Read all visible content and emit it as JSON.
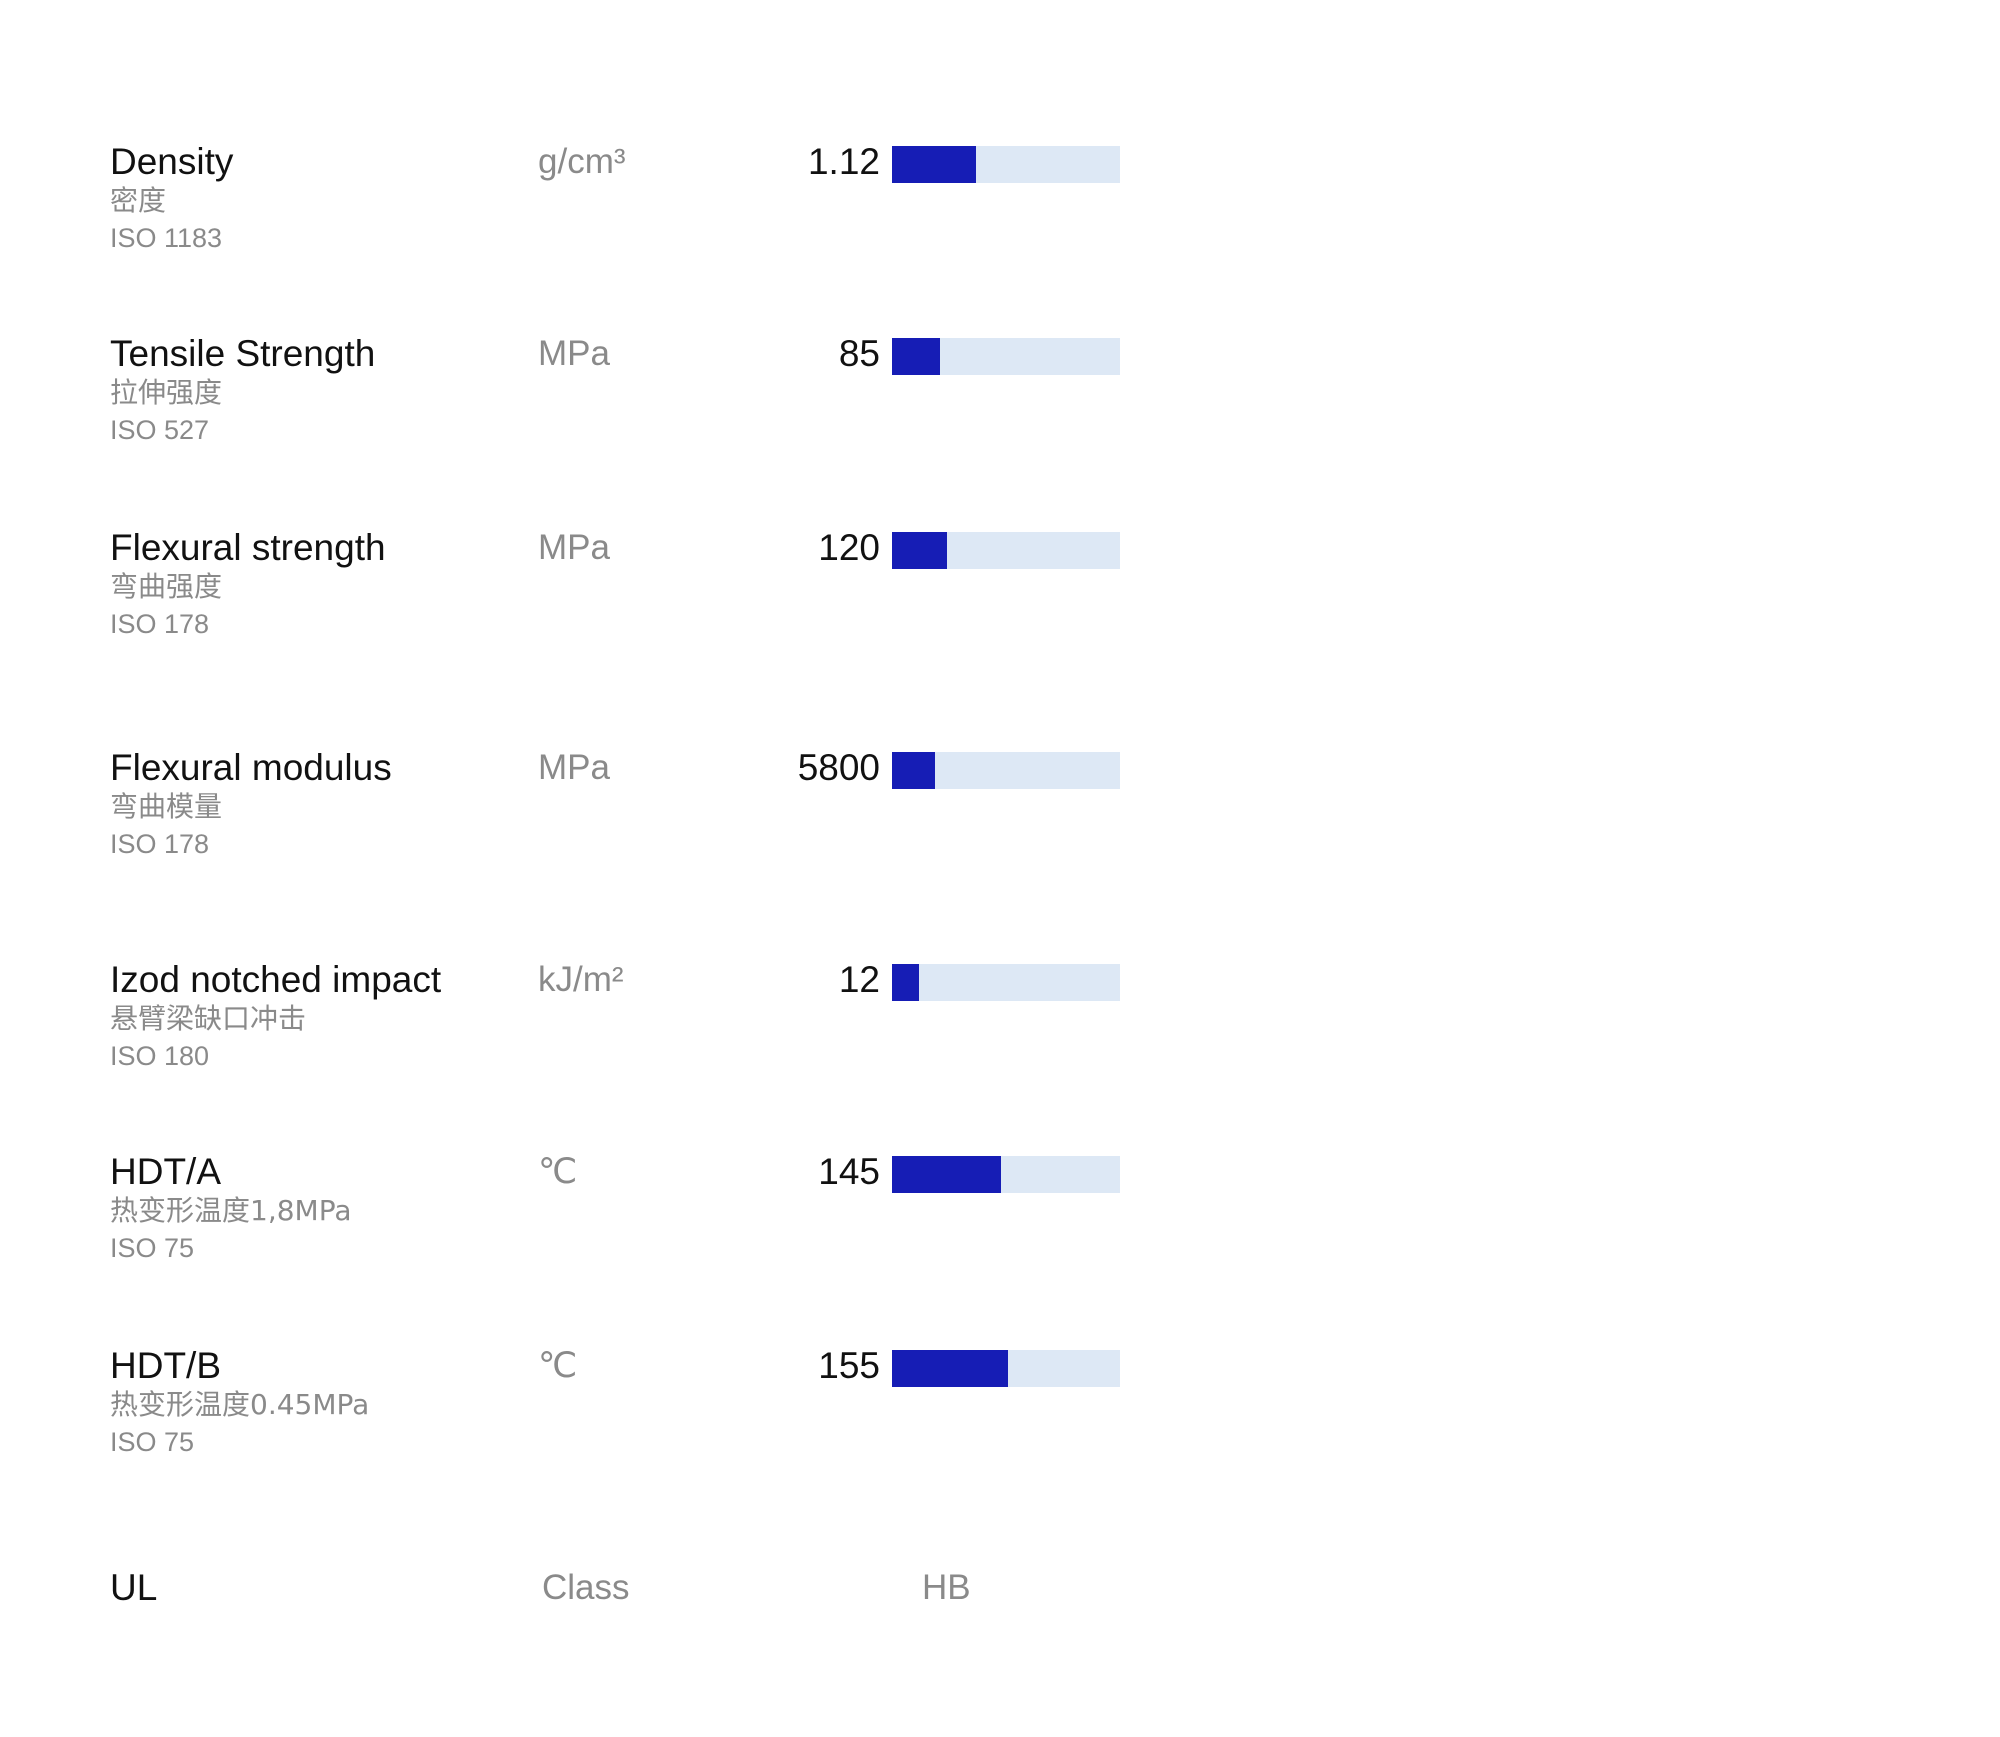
{
  "properties": [
    {
      "name": "Density",
      "name_cn": "密度",
      "standard": "ISO 1183",
      "unit": "g/cm³",
      "value": "1.12",
      "bar_fraction": 0.37
    },
    {
      "name": "Tensile Strength",
      "name_cn": "拉伸强度",
      "standard": "ISO 527",
      "unit": "MPa",
      "value": "85",
      "bar_fraction": 0.21
    },
    {
      "name": "Flexural strength",
      "name_cn": "弯曲强度",
      "standard": "ISO 178",
      "unit": "MPa",
      "value": "120",
      "bar_fraction": 0.24
    },
    {
      "name": "Flexural modulus",
      "name_cn": "弯曲模量",
      "standard": "ISO 178",
      "unit": "MPa",
      "value": "5800",
      "bar_fraction": 0.19
    },
    {
      "name": "Izod notched impact",
      "name_cn": "悬臂梁缺口冲击",
      "standard": "ISO 180",
      "unit": "kJ/m²",
      "value": "12",
      "bar_fraction": 0.12
    },
    {
      "name": "HDT/A",
      "name_cn": "热变形温度1,8MPa",
      "standard": "ISO 75",
      "unit": "℃",
      "value": "145",
      "bar_fraction": 0.48
    },
    {
      "name": "HDT/B",
      "name_cn": "热变形温度0.45MPa",
      "standard": "ISO 75",
      "unit": "℃",
      "value": "155",
      "bar_fraction": 0.51
    }
  ],
  "ul": {
    "name": "UL",
    "class_label": "Class",
    "value": "HB"
  },
  "colors": {
    "bar_fill": "#161db5",
    "bar_track": "#dde8f5"
  }
}
